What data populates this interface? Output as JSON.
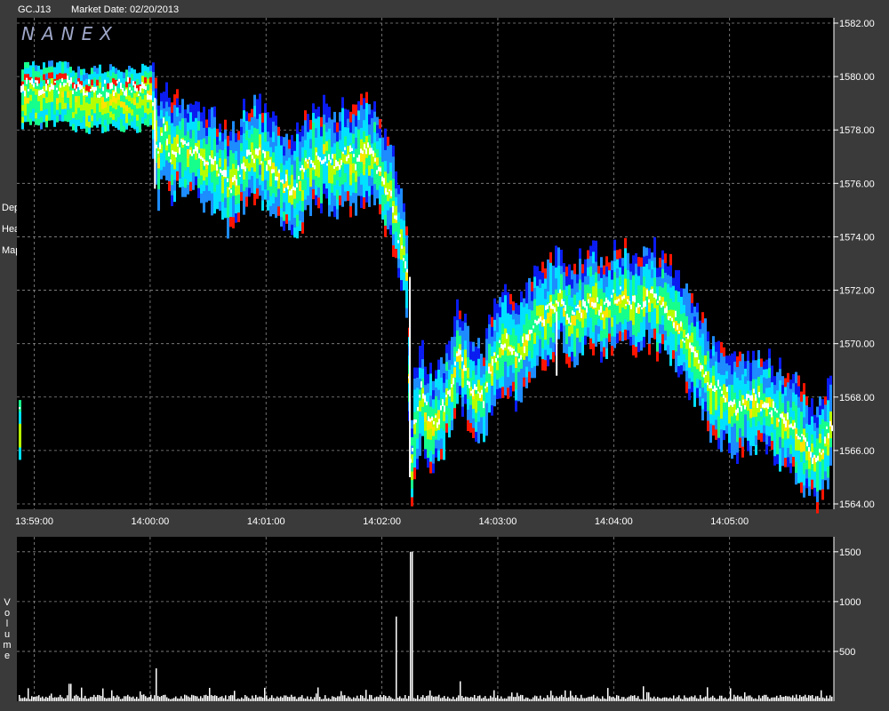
{
  "header": {
    "symbol": "GC.J13",
    "market_date": "Market Date: 02/20/2013"
  },
  "watermark": "NANEX",
  "panels": {
    "price_label": "Depth\n\nHeat\n\nMap",
    "volume_label": "Volume"
  },
  "colors": {
    "background": "#3a3a3a",
    "plot": "#000000",
    "grid": "#8c8c8c",
    "trade": "#ffffff",
    "depth_scale": [
      "#0a1cf0",
      "#1d8cff",
      "#00e0ff",
      "#16ff8c",
      "#b6ff00",
      "#ffe400",
      "#ff1500"
    ]
  },
  "chart_data": [
    {
      "type": "heatmap",
      "title": "Depth Heat Map",
      "xlabel": "",
      "ylabel": "",
      "x_ticks": [
        "13:59:00",
        "14:00:00",
        "14:01:00",
        "14:02:00",
        "14:03:00",
        "14:04:00",
        "14:05:00"
      ],
      "y_ticks": [
        "1564.00",
        "1566.00",
        "1568.00",
        "1570.00",
        "1572.00",
        "1574.00",
        "1576.00",
        "1578.00",
        "1580.00",
        "1582.00"
      ],
      "ylim": [
        1563.8,
        1582.2
      ],
      "xlim_seconds_from_1400": [
        -69,
        354
      ],
      "grid": true,
      "price_path": [
        [
          -68,
          1579.6
        ],
        [
          -50,
          1579.7
        ],
        [
          -30,
          1579.5
        ],
        [
          -10,
          1579.6
        ],
        [
          0,
          1579.5
        ],
        [
          3,
          1577.0
        ],
        [
          6,
          1578.2
        ],
        [
          10,
          1577.1
        ],
        [
          15,
          1577.4
        ],
        [
          22,
          1577.2
        ],
        [
          30,
          1576.9
        ],
        [
          36,
          1576.4
        ],
        [
          42,
          1575.9
        ],
        [
          48,
          1576.8
        ],
        [
          55,
          1577.1
        ],
        [
          62,
          1576.7
        ],
        [
          68,
          1576.1
        ],
        [
          74,
          1575.8
        ],
        [
          80,
          1576.6
        ],
        [
          86,
          1576.9
        ],
        [
          92,
          1577.0
        ],
        [
          96,
          1576.5
        ],
        [
          100,
          1577.2
        ],
        [
          106,
          1576.9
        ],
        [
          112,
          1577.3
        ],
        [
          118,
          1576.6
        ],
        [
          124,
          1575.5
        ],
        [
          128,
          1574.1
        ],
        [
          131,
          1573.3
        ],
        [
          133,
          1572.3
        ],
        [
          134,
          1565.1
        ],
        [
          137,
          1567.3
        ],
        [
          140,
          1568.2
        ],
        [
          145,
          1566.9
        ],
        [
          150,
          1567.4
        ],
        [
          156,
          1568.6
        ],
        [
          160,
          1569.8
        ],
        [
          166,
          1568.3
        ],
        [
          172,
          1567.9
        ],
        [
          178,
          1569.6
        ],
        [
          184,
          1570.1
        ],
        [
          190,
          1569.4
        ],
        [
          196,
          1570.6
        ],
        [
          204,
          1571.1
        ],
        [
          212,
          1571.7
        ],
        [
          218,
          1570.9
        ],
        [
          226,
          1571.6
        ],
        [
          234,
          1571.3
        ],
        [
          242,
          1571.9
        ],
        [
          250,
          1571.4
        ],
        [
          258,
          1571.8
        ],
        [
          266,
          1571.3
        ],
        [
          274,
          1570.6
        ],
        [
          282,
          1569.5
        ],
        [
          290,
          1568.4
        ],
        [
          298,
          1568.1
        ],
        [
          304,
          1567.5
        ],
        [
          312,
          1568.0
        ],
        [
          318,
          1567.7
        ],
        [
          326,
          1567.2
        ],
        [
          332,
          1566.9
        ],
        [
          338,
          1566.4
        ],
        [
          344,
          1565.4
        ],
        [
          350,
          1566.6
        ],
        [
          354,
          1567.3
        ]
      ],
      "trade_spikes": [
        [
          134,
          1565.0,
          1572.5
        ],
        [
          2,
          1575.8,
          1579.2
        ],
        [
          210,
          1568.8,
          1571.2
        ]
      ]
    },
    {
      "type": "bar",
      "title": "Volume",
      "xlabel": "",
      "ylabel": "",
      "y_ticks": [
        "500",
        "1000",
        "1500"
      ],
      "ylim": [
        0,
        1650
      ],
      "grid": true,
      "baseline_volume": 50,
      "spikes": [
        [
          135,
          1500
        ],
        [
          127,
          850
        ],
        [
          3,
          330
        ],
        [
          -42,
          175
        ],
        [
          160,
          200
        ],
        [
          255,
          150
        ],
        [
          300,
          130
        ],
        [
          -20,
          110
        ]
      ]
    }
  ]
}
